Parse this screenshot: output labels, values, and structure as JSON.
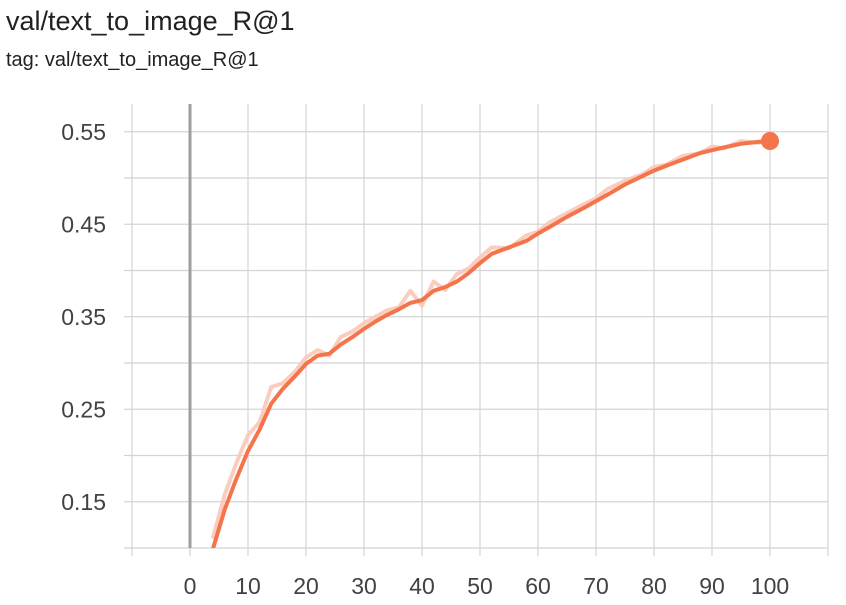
{
  "header": {
    "title": "val/text_to_image_R@1",
    "subtitle": "tag: val/text_to_image_R@1"
  },
  "colors": {
    "series": "#f4744b",
    "series_raw": "#f9c8b8",
    "grid": "#d4d4d4",
    "zero_axis": "#9e9e9e",
    "tick_text": "#424242"
  },
  "chart_data": {
    "type": "line",
    "title": "val/text_to_image_R@1",
    "subtitle": "tag: val/text_to_image_R@1",
    "xlabel": "",
    "ylabel": "",
    "xlim": [
      -10,
      110
    ],
    "ylim": [
      0.1,
      0.58
    ],
    "grid": true,
    "x_ticks": [
      0,
      10,
      20,
      30,
      40,
      50,
      60,
      70,
      80,
      90,
      100
    ],
    "x_tick_labels": [
      "0",
      "10",
      "20",
      "30",
      "40",
      "50",
      "60",
      "70",
      "80",
      "90",
      "100"
    ],
    "y_ticks": [
      0.15,
      0.25,
      0.35,
      0.45,
      0.55
    ],
    "y_tick_labels": [
      "0.15",
      "0.25",
      "0.35",
      "0.45",
      "0.55"
    ],
    "series": [
      {
        "smoothed": true,
        "x": [
          4,
          6,
          8,
          10,
          12,
          14,
          16,
          18,
          20,
          22,
          24,
          26,
          28,
          30,
          32,
          34,
          36,
          38,
          40,
          42,
          44,
          46,
          48,
          50,
          52,
          55,
          58,
          60,
          62,
          65,
          68,
          70,
          72,
          75,
          78,
          80,
          82,
          85,
          88,
          90,
          92,
          95,
          98,
          100
        ],
        "y": [
          0.1,
          0.142,
          0.175,
          0.205,
          0.228,
          0.256,
          0.272,
          0.285,
          0.299,
          0.308,
          0.31,
          0.32,
          0.328,
          0.337,
          0.345,
          0.352,
          0.358,
          0.365,
          0.368,
          0.378,
          0.382,
          0.388,
          0.397,
          0.408,
          0.418,
          0.425,
          0.432,
          0.44,
          0.447,
          0.458,
          0.468,
          0.475,
          0.482,
          0.493,
          0.502,
          0.508,
          0.513,
          0.52,
          0.527,
          0.53,
          0.533,
          0.537,
          0.539,
          0.54
        ]
      },
      {
        "smoothed": false,
        "x": [
          4,
          6,
          8,
          10,
          12,
          14,
          16,
          18,
          20,
          22,
          24,
          26,
          28,
          30,
          32,
          34,
          36,
          38,
          40,
          42,
          44,
          46,
          48,
          50,
          52,
          55,
          58,
          60,
          62,
          65,
          68,
          70,
          72,
          75,
          78,
          80,
          82,
          85,
          88,
          90,
          92,
          95,
          98,
          100
        ],
        "y": [
          0.112,
          0.158,
          0.192,
          0.222,
          0.236,
          0.274,
          0.278,
          0.29,
          0.306,
          0.314,
          0.308,
          0.328,
          0.334,
          0.343,
          0.35,
          0.357,
          0.36,
          0.378,
          0.362,
          0.388,
          0.379,
          0.396,
          0.402,
          0.414,
          0.425,
          0.424,
          0.438,
          0.442,
          0.452,
          0.462,
          0.472,
          0.478,
          0.488,
          0.497,
          0.504,
          0.512,
          0.514,
          0.524,
          0.527,
          0.534,
          0.532,
          0.54,
          0.538,
          0.541
        ]
      }
    ]
  }
}
